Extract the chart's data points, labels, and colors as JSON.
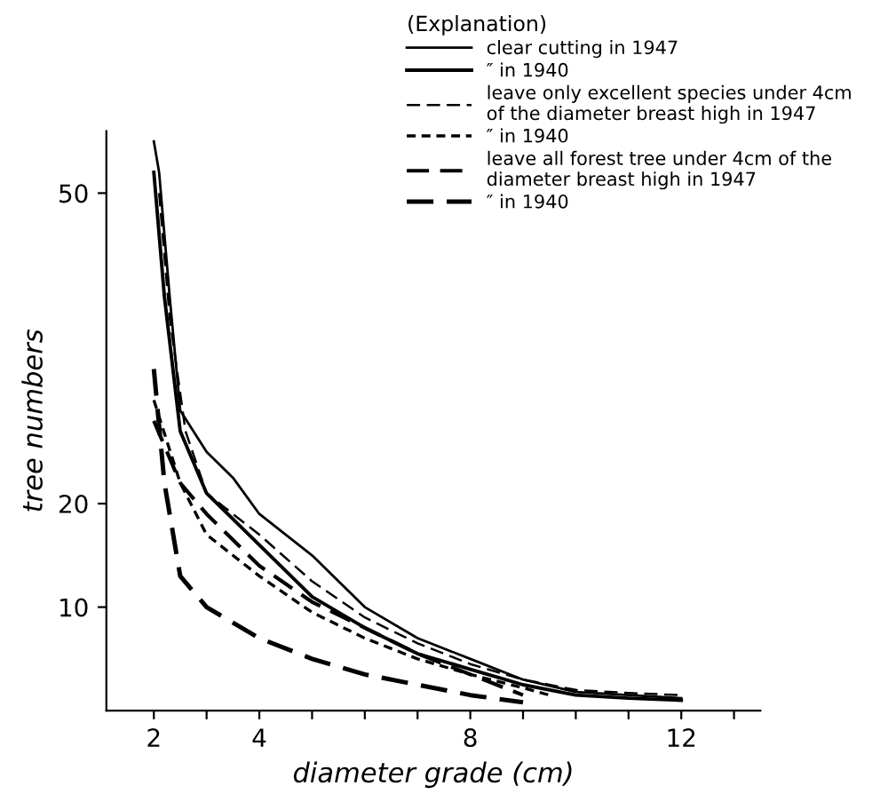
{
  "chart_data": {
    "type": "line",
    "xlabel": "diameter grade (cm)",
    "ylabel": "tree numbers",
    "legend_title": "(Explanation)",
    "legend": "top right",
    "grid": false,
    "marker": "none",
    "xlim": [
      1.1,
      13.5
    ],
    "ylim": [
      0,
      56
    ],
    "xticks": [
      2,
      {
        "value": 3,
        "label": null
      },
      4,
      {
        "value": 5,
        "label": null
      },
      {
        "value": 6,
        "label": null
      },
      {
        "value": 7,
        "label": null
      },
      8,
      {
        "value": 9,
        "label": null
      },
      {
        "value": 10,
        "label": null
      },
      {
        "value": 11,
        "label": null
      },
      12,
      {
        "value": 13,
        "label": null
      }
    ],
    "yticks": [
      10,
      20,
      50
    ],
    "series": [
      {
        "name": "clear cutting in 1947",
        "color": "#000000",
        "line_style": "solid",
        "x": [
          2,
          2.1,
          2.3,
          2.5,
          3,
          3.5,
          4,
          5,
          6,
          7,
          8,
          9,
          10,
          11,
          12
        ],
        "values": [
          55,
          52,
          40,
          29,
          25,
          22.5,
          19,
          15,
          10,
          7,
          5,
          3,
          1.8,
          1.5,
          1.2
        ]
      },
      {
        "name": "″ in 1940",
        "color": "#000000",
        "line_style": "solid",
        "x": [
          2,
          2.2,
          2.5,
          3,
          4,
          5,
          6,
          7,
          8,
          9,
          10,
          11,
          12
        ],
        "values": [
          52,
          40,
          27,
          21,
          16,
          11,
          8,
          5.5,
          4,
          2.5,
          1.5,
          1.2,
          1.0
        ]
      },
      {
        "name": "leave only excellent species under 4cm\nof the diameter breast high in 1947",
        "color": "#000000",
        "line_style": "dashed",
        "x": [
          2.1,
          2.3,
          2.6,
          3,
          4,
          5,
          6,
          7,
          8,
          9,
          10,
          11,
          12
        ],
        "values": [
          50,
          38,
          27,
          21,
          17,
          12.5,
          9,
          6.5,
          4.5,
          3,
          2,
          1.7,
          1.5
        ]
      },
      {
        "name": "″ in 1940",
        "color": "#000000",
        "line_style": "dotted",
        "x": [
          2,
          2.5,
          3,
          4,
          5,
          6,
          7,
          8,
          9,
          9.5
        ],
        "values": [
          30,
          22,
          17,
          13,
          9.5,
          7,
          5,
          3.5,
          2.2,
          1.5
        ]
      },
      {
        "name": "leave all forest tree under 4cm of the\ndiameter breast high in 1947",
        "color": "#000000",
        "line_style": "dashed",
        "x": [
          2,
          2.5,
          3,
          4,
          5,
          6,
          7,
          8,
          9
        ],
        "values": [
          28,
          22,
          19,
          14,
          10.5,
          8,
          5.5,
          3.5,
          1.5
        ]
      },
      {
        "name": "″ in 1940",
        "color": "#000000",
        "line_style": "dashed",
        "x": [
          2,
          2.2,
          2.5,
          3,
          4,
          5,
          6,
          7,
          8,
          9
        ],
        "values": [
          33,
          22,
          13,
          10,
          7,
          5,
          3.5,
          2.5,
          1.5,
          0.8
        ]
      }
    ]
  }
}
